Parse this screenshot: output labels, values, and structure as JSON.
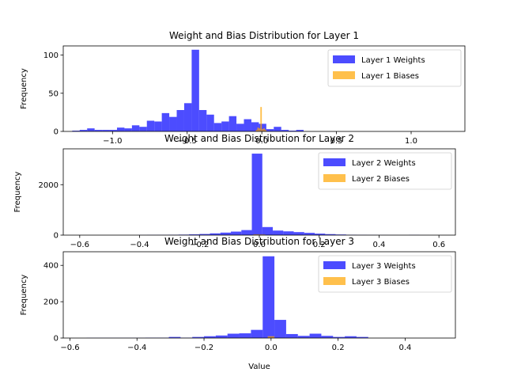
{
  "chart_data": [
    {
      "type": "bar",
      "title": "Weight and Bias Distribution for Layer 1",
      "xlabel": "",
      "ylabel": "Frequency",
      "xlim": [
        -1.33,
        1.36
      ],
      "ylim": [
        0,
        112
      ],
      "xticks": [
        -1.0,
        -0.5,
        0.0,
        0.5,
        1.0
      ],
      "xticklabels": [
        "−1.0",
        "−0.5",
        "0.0",
        "0.5",
        "1.0"
      ],
      "yticks": [
        0,
        50,
        100
      ],
      "yticklabels": [
        "0",
        "50",
        "100"
      ],
      "legend_position": "top-right",
      "series": [
        {
          "name": "Layer 1 Weights",
          "color": "#0000ff",
          "bins": [
            {
              "x0": -1.27,
              "x1": -1.22,
              "count": 1
            },
            {
              "x0": -1.22,
              "x1": -1.17,
              "count": 2
            },
            {
              "x0": -1.17,
              "x1": -1.12,
              "count": 4
            },
            {
              "x0": -1.12,
              "x1": -1.07,
              "count": 2
            },
            {
              "x0": -1.07,
              "x1": -1.02,
              "count": 2
            },
            {
              "x0": -1.02,
              "x1": -0.97,
              "count": 2
            },
            {
              "x0": -0.97,
              "x1": -0.92,
              "count": 5
            },
            {
              "x0": -0.92,
              "x1": -0.87,
              "count": 4
            },
            {
              "x0": -0.87,
              "x1": -0.82,
              "count": 8
            },
            {
              "x0": -0.82,
              "x1": -0.77,
              "count": 6
            },
            {
              "x0": -0.77,
              "x1": -0.72,
              "count": 14
            },
            {
              "x0": -0.72,
              "x1": -0.67,
              "count": 13
            },
            {
              "x0": -0.67,
              "x1": -0.62,
              "count": 24
            },
            {
              "x0": -0.62,
              "x1": -0.57,
              "count": 19
            },
            {
              "x0": -0.57,
              "x1": -0.52,
              "count": 28
            },
            {
              "x0": -0.52,
              "x1": -0.47,
              "count": 37
            },
            {
              "x0": -0.47,
              "x1": -0.42,
              "count": 107
            },
            {
              "x0": -0.42,
              "x1": -0.37,
              "count": 28
            },
            {
              "x0": -0.37,
              "x1": -0.32,
              "count": 22
            },
            {
              "x0": -0.32,
              "x1": -0.27,
              "count": 11
            },
            {
              "x0": -0.27,
              "x1": -0.22,
              "count": 13
            },
            {
              "x0": -0.22,
              "x1": -0.17,
              "count": 20
            },
            {
              "x0": -0.17,
              "x1": -0.12,
              "count": 10
            },
            {
              "x0": -0.12,
              "x1": -0.07,
              "count": 16
            },
            {
              "x0": -0.07,
              "x1": -0.02,
              "count": 12
            },
            {
              "x0": -0.02,
              "x1": 0.03,
              "count": 10
            },
            {
              "x0": 0.03,
              "x1": 0.08,
              "count": 3
            },
            {
              "x0": 0.08,
              "x1": 0.13,
              "count": 6
            },
            {
              "x0": 0.13,
              "x1": 0.18,
              "count": 2
            },
            {
              "x0": 0.18,
              "x1": 0.23,
              "count": 1
            },
            {
              "x0": 0.23,
              "x1": 0.28,
              "count": 2
            }
          ]
        },
        {
          "name": "Layer 1 Biases",
          "color": "#ffa500",
          "bins": [
            {
              "x0": -0.04,
              "x1": -0.03,
              "count": 2
            },
            {
              "x0": -0.03,
              "x1": -0.02,
              "count": 5
            },
            {
              "x0": -0.02,
              "x1": -0.01,
              "count": 4
            },
            {
              "x0": -0.01,
              "x1": 0.0,
              "count": 32
            },
            {
              "x0": 0.0,
              "x1": 0.01,
              "count": 3
            },
            {
              "x0": 0.01,
              "x1": 0.02,
              "count": 4
            },
            {
              "x0": 0.02,
              "x1": 0.03,
              "count": 2
            }
          ]
        }
      ]
    },
    {
      "type": "bar",
      "title": "Weight and Bias Distribution for Layer 2",
      "xlabel": "",
      "ylabel": "Frequency",
      "xlim": [
        -0.655,
        0.655
      ],
      "ylim": [
        0,
        3420
      ],
      "xticks": [
        -0.6,
        -0.4,
        -0.2,
        0.0,
        0.2,
        0.4,
        0.6
      ],
      "xticklabels": [
        "−0.6",
        "−0.4",
        "−0.2",
        "0.0",
        "0.2",
        "0.4",
        "0.6"
      ],
      "yticks": [
        0,
        2000
      ],
      "yticklabels": [
        "0",
        "2000"
      ],
      "legend_position": "top-right",
      "series": [
        {
          "name": "Layer 2 Weights",
          "color": "#0000ff",
          "bins": [
            {
              "x0": -0.41,
              "x1": -0.375,
              "count": 5
            },
            {
              "x0": -0.375,
              "x1": -0.34,
              "count": 8
            },
            {
              "x0": -0.34,
              "x1": -0.305,
              "count": 10
            },
            {
              "x0": -0.305,
              "x1": -0.27,
              "count": 15
            },
            {
              "x0": -0.27,
              "x1": -0.235,
              "count": 20
            },
            {
              "x0": -0.235,
              "x1": -0.2,
              "count": 30
            },
            {
              "x0": -0.2,
              "x1": -0.165,
              "count": 45
            },
            {
              "x0": -0.165,
              "x1": -0.13,
              "count": 70
            },
            {
              "x0": -0.13,
              "x1": -0.095,
              "count": 100
            },
            {
              "x0": -0.095,
              "x1": -0.06,
              "count": 140
            },
            {
              "x0": -0.06,
              "x1": -0.025,
              "count": 200
            },
            {
              "x0": -0.025,
              "x1": 0.01,
              "count": 3230
            },
            {
              "x0": 0.01,
              "x1": 0.045,
              "count": 320
            },
            {
              "x0": 0.045,
              "x1": 0.08,
              "count": 180
            },
            {
              "x0": 0.08,
              "x1": 0.115,
              "count": 150
            },
            {
              "x0": 0.115,
              "x1": 0.15,
              "count": 120
            },
            {
              "x0": 0.15,
              "x1": 0.185,
              "count": 90
            },
            {
              "x0": 0.185,
              "x1": 0.22,
              "count": 60
            },
            {
              "x0": 0.22,
              "x1": 0.255,
              "count": 40
            },
            {
              "x0": 0.255,
              "x1": 0.29,
              "count": 25
            },
            {
              "x0": 0.29,
              "x1": 0.325,
              "count": 15
            },
            {
              "x0": 0.325,
              "x1": 0.36,
              "count": 10
            },
            {
              "x0": 0.36,
              "x1": 0.395,
              "count": 6
            },
            {
              "x0": 0.395,
              "x1": 0.43,
              "count": 4
            },
            {
              "x0": 0.43,
              "x1": 0.465,
              "count": 3
            },
            {
              "x0": 0.465,
              "x1": 0.5,
              "count": 2
            },
            {
              "x0": 0.5,
              "x1": 0.535,
              "count": 8
            },
            {
              "x0": 0.535,
              "x1": 0.57,
              "count": 2
            }
          ]
        },
        {
          "name": "Layer 2 Biases",
          "color": "#ffa500",
          "bins": [
            {
              "x0": -0.02,
              "x1": 0.0,
              "count": 30
            },
            {
              "x0": 0.0,
              "x1": 0.02,
              "count": 25
            }
          ]
        }
      ]
    },
    {
      "type": "bar",
      "title": "Weight and Bias Distribution for Layer 3",
      "xlabel": "Value",
      "ylabel": "Frequency",
      "xlim": [
        -0.62,
        0.55
      ],
      "ylim": [
        0,
        475
      ],
      "xticks": [
        -0.6,
        -0.4,
        -0.2,
        0.0,
        0.2,
        0.4
      ],
      "xticklabels": [
        "−0.6",
        "−0.4",
        "−0.2",
        "0.0",
        "0.2",
        "0.4"
      ],
      "yticks": [
        0,
        200,
        400
      ],
      "yticklabels": [
        "0",
        "200",
        "400"
      ],
      "legend_position": "top-right",
      "series": [
        {
          "name": "Layer 3 Weights",
          "color": "#0000ff",
          "bins": [
            {
              "x0": -0.55,
              "x1": -0.515,
              "count": 1
            },
            {
              "x0": -0.515,
              "x1": -0.48,
              "count": 1
            },
            {
              "x0": -0.48,
              "x1": -0.445,
              "count": 1
            },
            {
              "x0": -0.445,
              "x1": -0.41,
              "count": 1
            },
            {
              "x0": -0.41,
              "x1": -0.375,
              "count": 1
            },
            {
              "x0": -0.375,
              "x1": -0.34,
              "count": 2
            },
            {
              "x0": -0.34,
              "x1": -0.305,
              "count": 2
            },
            {
              "x0": -0.305,
              "x1": -0.27,
              "count": 6
            },
            {
              "x0": -0.27,
              "x1": -0.235,
              "count": 2
            },
            {
              "x0": -0.235,
              "x1": -0.2,
              "count": 6
            },
            {
              "x0": -0.2,
              "x1": -0.165,
              "count": 10
            },
            {
              "x0": -0.165,
              "x1": -0.13,
              "count": 14
            },
            {
              "x0": -0.13,
              "x1": -0.095,
              "count": 24
            },
            {
              "x0": -0.095,
              "x1": -0.06,
              "count": 26
            },
            {
              "x0": -0.06,
              "x1": -0.025,
              "count": 45
            },
            {
              "x0": -0.025,
              "x1": 0.01,
              "count": 450
            },
            {
              "x0": 0.01,
              "x1": 0.045,
              "count": 100
            },
            {
              "x0": 0.045,
              "x1": 0.08,
              "count": 22
            },
            {
              "x0": 0.08,
              "x1": 0.115,
              "count": 12
            },
            {
              "x0": 0.115,
              "x1": 0.15,
              "count": 24
            },
            {
              "x0": 0.15,
              "x1": 0.185,
              "count": 12
            },
            {
              "x0": 0.185,
              "x1": 0.22,
              "count": 6
            },
            {
              "x0": 0.22,
              "x1": 0.255,
              "count": 10
            },
            {
              "x0": 0.255,
              "x1": 0.29,
              "count": 6
            }
          ]
        },
        {
          "name": "Layer 3 Biases",
          "color": "#ffa500",
          "bins": [
            {
              "x0": -0.01,
              "x1": 0.01,
              "count": 10
            }
          ]
        }
      ]
    }
  ]
}
